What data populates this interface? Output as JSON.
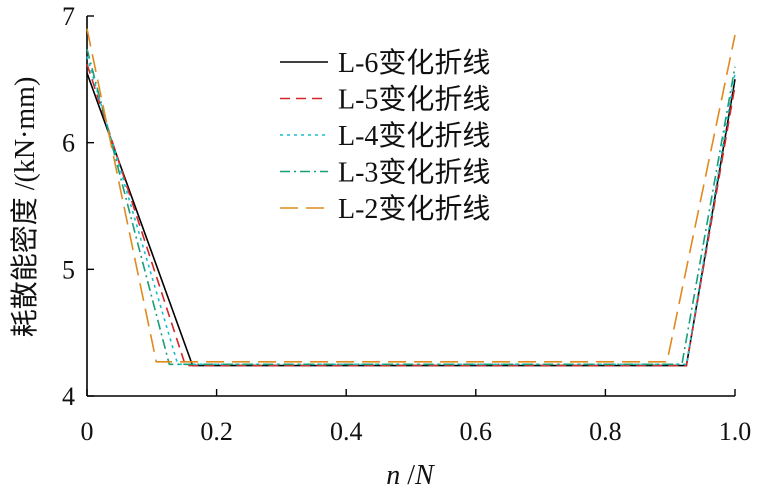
{
  "chart_data": {
    "type": "line",
    "xlabel_italic_1": "n",
    "xlabel_sep": " /",
    "xlabel_italic_2": "N",
    "ylabel": "耗散能密度 /(kN·mm)",
    "xlim": [
      0,
      1.0
    ],
    "ylim": [
      4,
      7
    ],
    "x_ticks": [
      "0",
      "0.2",
      "0.4",
      "0.6",
      "0.8",
      "1.0"
    ],
    "x_tick_values": [
      0,
      0.2,
      0.4,
      0.6,
      0.8,
      1.0
    ],
    "y_ticks": [
      "4",
      "5",
      "6",
      "7"
    ],
    "y_tick_values": [
      4,
      5,
      6,
      7
    ],
    "grid": false,
    "legend_position": "top-center",
    "series": [
      {
        "name": "L-6变化折线",
        "color": "#000000",
        "dash": "solid",
        "x": [
          0,
          0.163,
          0.925,
          1.0
        ],
        "y": [
          6.55,
          4.24,
          4.24,
          6.5
        ]
      },
      {
        "name": "L-5变化折线",
        "color": "#d62728",
        "dash": "dashed",
        "x": [
          0,
          0.152,
          0.925,
          1.0
        ],
        "y": [
          6.62,
          4.24,
          4.24,
          6.45
        ]
      },
      {
        "name": "L-4变化折线",
        "color": "#17becf",
        "dash": "dotted",
        "x": [
          0,
          0.14,
          0.925,
          1.0
        ],
        "y": [
          6.68,
          4.25,
          4.25,
          6.55
        ]
      },
      {
        "name": "L-3变化折线",
        "color": "#1a9e77",
        "dash": "dashdot",
        "x": [
          0,
          0.127,
          0.918,
          1.0
        ],
        "y": [
          6.74,
          4.25,
          4.25,
          6.6
        ]
      },
      {
        "name": "L-2变化折线",
        "color": "#e08a1e",
        "dash": "longdash",
        "x": [
          0,
          0.107,
          0.895,
          1.0
        ],
        "y": [
          6.9,
          4.27,
          4.27,
          6.85
        ]
      }
    ]
  }
}
